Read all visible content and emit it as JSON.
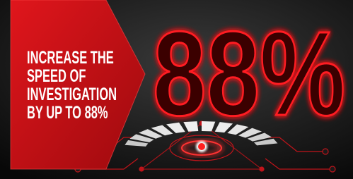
{
  "headline": [
    "INCREASE THE",
    "SPEED OF",
    "INVESTIGATION",
    "BY UP TO 88%"
  ],
  "stat": "88%"
}
